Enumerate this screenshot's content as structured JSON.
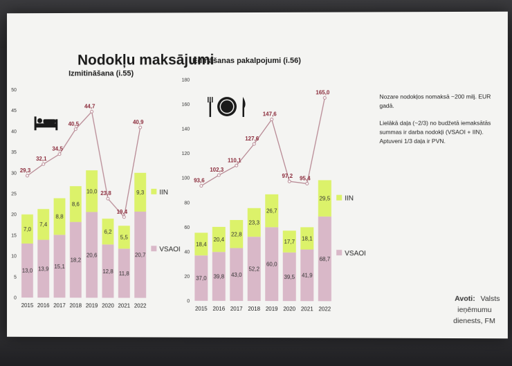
{
  "slide": {
    "title": "Nodokļu maksājumi",
    "note1": [
      "Nozare nodokļos nomaksā ~200 milj. EUR",
      "gadā."
    ],
    "note2": [
      "Lielākā daļa (~2/3) no budžetā iemaksātās",
      "summas ir darba nodokļi (VSAOI + IIN).",
      "Aptuveni 1/3 daļa ir PVN."
    ],
    "source_bold": "Avoti:",
    "source_rest": [
      "Valsts",
      "ieņēmumu",
      "dienests, FM"
    ]
  },
  "colors": {
    "vsaoi": "#d9b8c8",
    "iin": "#dcf26a",
    "line": "#b88a95",
    "line_label": "#8a2a3a"
  },
  "icons": [
    "bed-icon",
    "plate-cutlery-icon"
  ],
  "chart_data": [
    {
      "type": "bar",
      "title": "Izmitināšana (i.55)",
      "categories": [
        "2015",
        "2016",
        "2017",
        "2018",
        "2019",
        "2020",
        "2021",
        "2022"
      ],
      "series": [
        {
          "name": "VSAOI",
          "values": [
            13.0,
            13.9,
            15.1,
            18.2,
            20.6,
            12.8,
            11.8,
            20.7
          ],
          "labels": [
            "13,0",
            "13,9",
            "15,1",
            "18,2",
            "20,6",
            "12,8",
            "11,8",
            "20,7"
          ]
        },
        {
          "name": "IIN",
          "values": [
            7.0,
            7.4,
            8.8,
            8.6,
            10.0,
            6.2,
            5.5,
            9.3
          ],
          "labels": [
            "7,0",
            "7,4",
            "8,8",
            "8,6",
            "10,0",
            "6,2",
            "5,5",
            "9,3"
          ]
        }
      ],
      "line": {
        "values": [
          29.3,
          32.1,
          34.5,
          40.5,
          44.7,
          23.8,
          19.4,
          40.9
        ],
        "labels": [
          "29,3",
          "32,1",
          "34,5",
          "40,5",
          "44,7",
          "23,8",
          "19,4",
          "40,9"
        ]
      },
      "yticks": [
        0,
        5,
        10,
        15,
        20,
        25,
        30,
        35,
        40,
        45,
        50
      ],
      "ylim": [
        0,
        50
      ],
      "stacked": true
    },
    {
      "type": "bar",
      "title": "Ēdināšanas pakalpojumi (i.56)",
      "categories": [
        "2015",
        "2016",
        "2017",
        "2018",
        "2019",
        "2020",
        "2021",
        "2022"
      ],
      "series": [
        {
          "name": "VSAOI",
          "values": [
            37.0,
            39.8,
            43.0,
            52.2,
            60.0,
            39.5,
            41.9,
            68.7
          ],
          "labels": [
            "37,0",
            "39,8",
            "43,0",
            "52,2",
            "60,0",
            "39,5",
            "41,9",
            "68,7"
          ]
        },
        {
          "name": "IIN",
          "values": [
            18.4,
            20.4,
            22.8,
            23.3,
            26.7,
            17.7,
            18.1,
            29.5
          ],
          "labels": [
            "18,4",
            "20,4",
            "22,8",
            "23,3",
            "26,7",
            "17,7",
            "18,1",
            "29,5"
          ]
        }
      ],
      "line": {
        "values": [
          93.6,
          102.3,
          110.1,
          127.6,
          147.6,
          97.2,
          95.4,
          165.0
        ],
        "labels": [
          "93,6",
          "102,3",
          "110,1",
          "127,6",
          "147,6",
          "97,2",
          "95,4",
          "165,0"
        ]
      },
      "yticks": [
        0,
        20,
        40,
        60,
        80,
        100,
        120,
        140,
        160,
        180
      ],
      "ylim": [
        0,
        180
      ],
      "stacked": true
    }
  ]
}
